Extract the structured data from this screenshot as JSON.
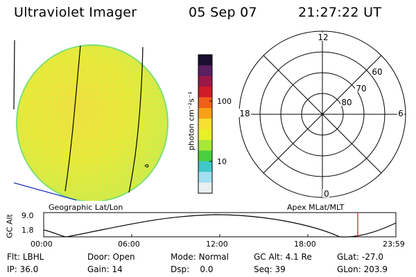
{
  "header": {
    "instrument": "Ultraviolet Imager",
    "date": "05 Sep 07",
    "time": "21:27:22 UT"
  },
  "colorbar": {
    "unit_label": "photon cm⁻²s⁻¹",
    "ticks": [
      "100",
      "10"
    ],
    "colors": [
      "#1a0f2e",
      "#5a2060",
      "#9a1848",
      "#d01c28",
      "#f06018",
      "#f8a018",
      "#f8e030",
      "#e8f028",
      "#a8e838",
      "#48d040",
      "#40c8c8",
      "#a0e0f0",
      "#e8f0f0"
    ]
  },
  "polar": {
    "mlat_labels": [
      "60",
      "70",
      "80"
    ],
    "mlt_labels": {
      "top": "12",
      "left": "18",
      "right": "6",
      "bottom": "0"
    }
  },
  "map_labels": {
    "left": "Geographic Lat/Lon",
    "right": "Apex MLat/MLT"
  },
  "altitude_plot": {
    "axis_label": "GC Alt",
    "y_ticks": [
      "9.0",
      "1.8"
    ],
    "x_ticks": [
      "00:00",
      "06:00",
      "12:00",
      "18:00",
      "23:59"
    ],
    "marker_color": "#c81414"
  },
  "status": {
    "filter_label": "Flt:",
    "filter_value": "LBHL",
    "ip_label": "IP:",
    "ip_value": "36.0",
    "door_label": "Door:",
    "door_value": "Open",
    "gain_label": "Gain:",
    "gain_value": "14",
    "mode_label": "Mode:",
    "mode_value": "Normal",
    "dsp_label": "Dsp:",
    "dsp_value": "0.0",
    "gcalt_label": "GC Alt:",
    "gcalt_value": "4.1 Re",
    "seq_label": "Seq:",
    "seq_value": "39",
    "glat_label": "GLat:",
    "glat_value": "-27.0",
    "glon_label": "GLon:",
    "glon_value": "203.9"
  }
}
